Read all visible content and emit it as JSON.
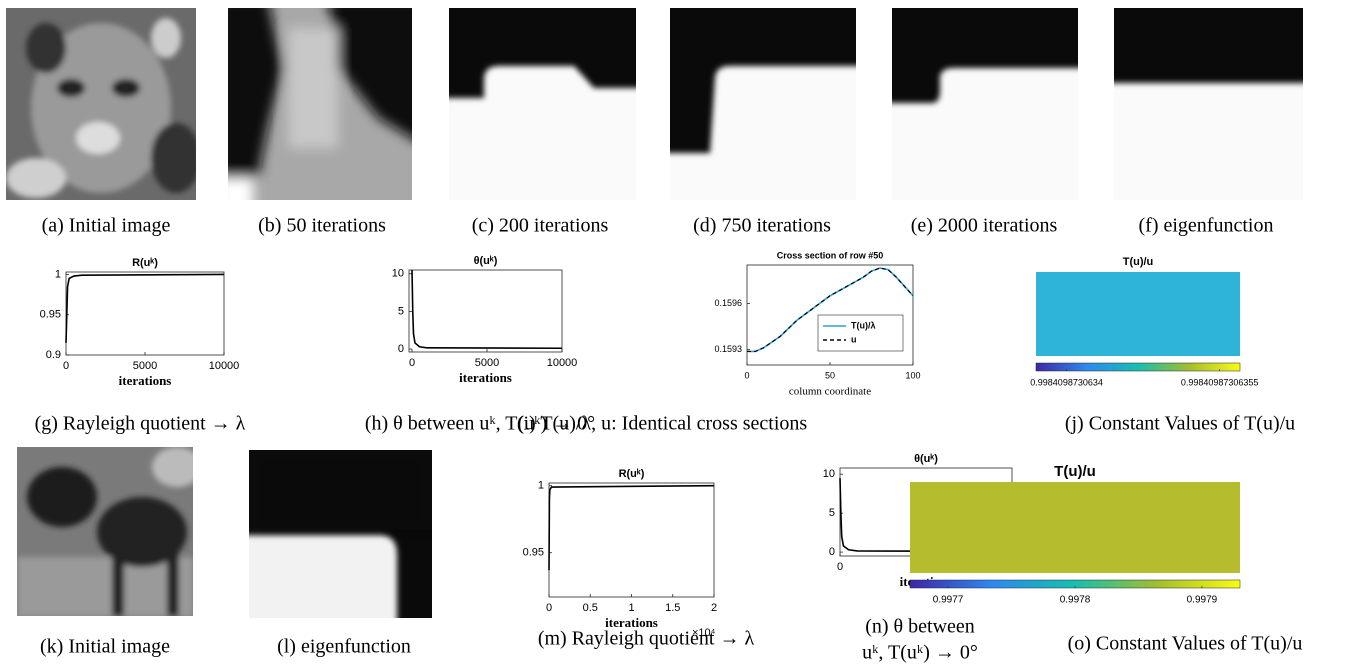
{
  "captions": [
    "(a) Initial image",
    "(b) 50 iterations",
    "(c) 200 iterations",
    "(d) 750 iterations",
    "(e) 2000 iterations",
    "(f) eigenfunction",
    "(g) Rayleigh quotient → λ",
    "(h) θ between uᵏ, T(uᵏ) → 0°",
    "(i) T(u)/λ, u: Identical cross sections",
    "(j) Constant Values of T(u)/u",
    "(k) Initial image",
    "(l) eigenfunction",
    "(m) Rayleigh quotient → λ",
    [
      "(n) θ between",
      "uᵏ, T(uᵏ) → 0°"
    ],
    "(o) Constant Values of T(u)/u"
  ],
  "chart_data": [
    {
      "type": "line",
      "title": "R(uᵏ)",
      "xlabel": "iterations",
      "xlim": [
        0,
        10000
      ],
      "xticks": [
        0,
        5000,
        10000
      ],
      "ylim": [
        0.9,
        1.003
      ],
      "yticks": [
        0.9,
        0.95,
        1
      ],
      "x": [
        0,
        100,
        200,
        500,
        1000,
        10000
      ],
      "series": [
        {
          "color": "#000000",
          "values": [
            0.915,
            0.985,
            0.995,
            0.998,
            0.999,
            1
          ]
        }
      ]
    },
    {
      "type": "line",
      "title": "θ(uᵏ)",
      "xlabel": "iterations",
      "xlim": [
        -200,
        10000
      ],
      "xticks": [
        0,
        5000,
        10000
      ],
      "ylim": [
        -0.4,
        10.5
      ],
      "yticks": [
        0,
        5,
        10
      ],
      "x": [
        0,
        50,
        100,
        200,
        500,
        1000,
        10000
      ],
      "series": [
        {
          "color": "#000000",
          "values": [
            10.5,
            5,
            2,
            0.8,
            0.3,
            0.15,
            0.1
          ]
        }
      ]
    },
    {
      "type": "line",
      "title": "Cross section of row #50",
      "xlabel": "column coordinate",
      "xlim": [
        0,
        100
      ],
      "xticks": [
        0,
        50,
        100
      ],
      "ylim": [
        0.1592,
        0.15985
      ],
      "yticks": [
        0.1593,
        0.1596
      ],
      "x": [
        0,
        5,
        10,
        20,
        30,
        40,
        50,
        60,
        70,
        75,
        80,
        85,
        90,
        95,
        100
      ],
      "series": [
        {
          "name": "T(u)/λ",
          "color": "#2a9fd8",
          "values": [
            0.159288,
            0.159288,
            0.159312,
            0.159386,
            0.15949,
            0.15957,
            0.15965,
            0.15971,
            0.15977,
            0.15981,
            0.15983,
            0.15982,
            0.15977,
            0.15971,
            0.15965
          ]
        },
        {
          "name": "u",
          "color": "#000000",
          "dash": true,
          "values": [
            0.159288,
            0.159288,
            0.159312,
            0.159386,
            0.15949,
            0.15957,
            0.15965,
            0.15971,
            0.15977,
            0.15981,
            0.15983,
            0.15982,
            0.15977,
            0.15971,
            0.15965
          ]
        }
      ],
      "legend": "lower right"
    },
    {
      "type": "heatmap",
      "title": "T(u)/u",
      "color": "#2eb3d9",
      "clim": [
        0.99840987306337,
        0.99840987306357
      ],
      "cticks": [
        0.9984098730634,
        0.99840987306355
      ]
    },
    {
      "type": "line",
      "title": "R(uᵏ)",
      "xlabel": "iterations",
      "x_multiplier": "×10⁴",
      "xlim": [
        0,
        20000
      ],
      "xticks": [
        0,
        {
          "value": 5000,
          "label": "0.5"
        },
        {
          "value": 10000,
          "label": "1"
        },
        {
          "value": 15000,
          "label": "1.5"
        },
        {
          "value": 20000,
          "label": "2"
        }
      ],
      "ylim": [
        0.917,
        1.002
      ],
      "yticks": [
        0.95,
        1
      ],
      "x": [
        0,
        50,
        100,
        300,
        20000
      ],
      "series": [
        {
          "color": "#000000",
          "values": [
            0.937,
            0.99,
            0.997,
            0.999,
            1
          ]
        }
      ]
    },
    {
      "type": "line",
      "title": "θ(uᵏ)",
      "xlabel": "iterations",
      "xlim": [
        0,
        10000
      ],
      "xticks": [
        0,
        5000,
        10000
      ],
      "ylim": [
        -0.5,
        10.8
      ],
      "yticks": [
        0,
        5,
        10
      ],
      "x": [
        0,
        50,
        100,
        200,
        500,
        1000,
        10000
      ],
      "series": [
        {
          "color": "#000000",
          "values": [
            9.5,
            5,
            2,
            0.8,
            0.3,
            0.15,
            0.1
          ]
        }
      ]
    },
    {
      "type": "heatmap",
      "title": "T(u)/u",
      "color": "#b5bd2e",
      "clim": [
        0.99767,
        0.99793
      ],
      "cticks": [
        0.9977,
        0.9978,
        0.9979
      ]
    }
  ]
}
